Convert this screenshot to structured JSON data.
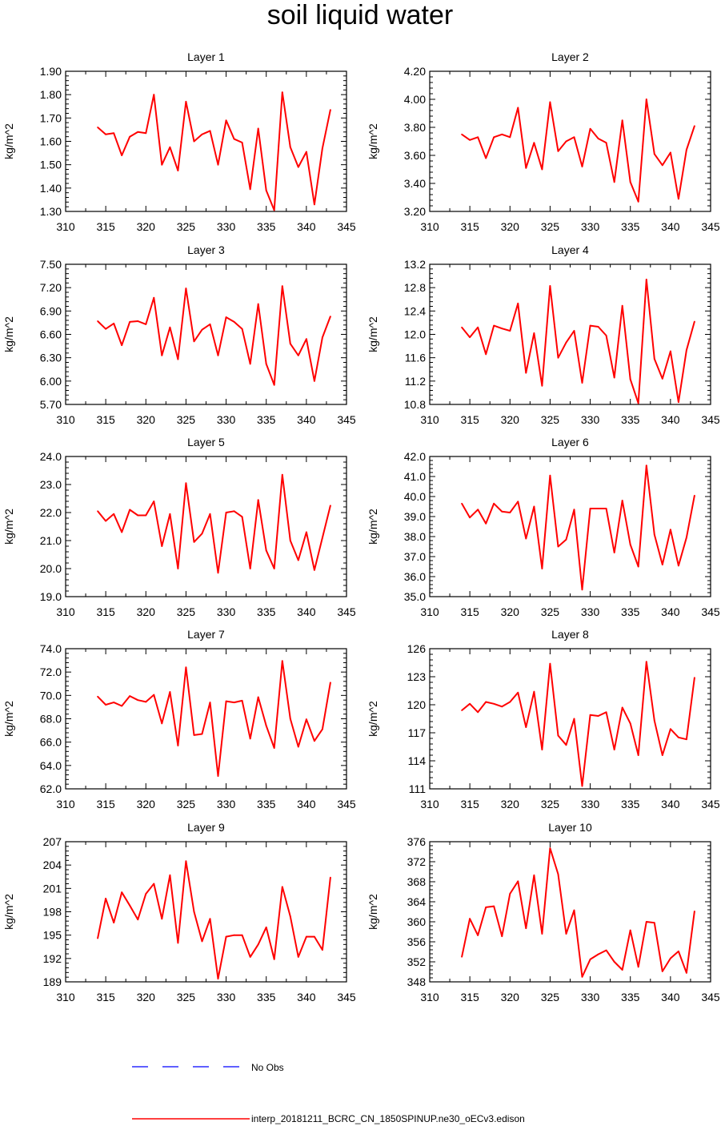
{
  "title": "soil liquid water",
  "ylabel": "kg/m^2",
  "x_ticks": [
    310,
    315,
    320,
    325,
    330,
    335,
    340,
    345
  ],
  "xlim": [
    310,
    345
  ],
  "x": [
    314,
    315,
    316,
    317,
    318,
    319,
    320,
    321,
    322,
    323,
    324,
    325,
    326,
    327,
    328,
    329,
    330,
    331,
    332,
    333,
    334,
    335,
    336,
    337,
    338,
    339,
    340,
    341,
    342,
    343
  ],
  "legend": {
    "obs_label": "No Obs",
    "obs_color": "#0000ff",
    "model_label": "interp_20181211_BCRC_CN_1850SPINUP.ne30_oECv3.edison",
    "model_color": "#ff0000"
  },
  "chart_data": [
    {
      "type": "line",
      "title": "Layer 1",
      "ylim": [
        1.3,
        1.9
      ],
      "yticks": [
        "1.30",
        "1.40",
        "1.50",
        "1.60",
        "1.70",
        "1.80",
        "1.90"
      ],
      "series": [
        {
          "values": [
            1.66,
            1.63,
            1.635,
            1.54,
            1.62,
            1.64,
            1.635,
            1.8,
            1.5,
            1.575,
            1.475,
            1.77,
            1.6,
            1.63,
            1.645,
            1.5,
            1.69,
            1.61,
            1.595,
            1.395,
            1.655,
            1.39,
            1.305,
            1.81,
            1.575,
            1.49,
            1.555,
            1.33,
            1.57,
            1.735
          ]
        }
      ]
    },
    {
      "type": "line",
      "title": "Layer 2",
      "ylim": [
        3.2,
        4.2
      ],
      "yticks": [
        "3.20",
        "3.40",
        "3.60",
        "3.80",
        "4.00",
        "4.20"
      ],
      "series": [
        {
          "values": [
            3.75,
            3.71,
            3.73,
            3.58,
            3.73,
            3.75,
            3.73,
            3.94,
            3.51,
            3.69,
            3.5,
            3.98,
            3.63,
            3.7,
            3.73,
            3.52,
            3.79,
            3.72,
            3.69,
            3.41,
            3.85,
            3.41,
            3.27,
            4.0,
            3.61,
            3.53,
            3.62,
            3.29,
            3.64,
            3.81
          ]
        }
      ]
    },
    {
      "type": "line",
      "title": "Layer 3",
      "ylim": [
        5.7,
        7.5
      ],
      "yticks": [
        "5.70",
        "6.00",
        "6.30",
        "6.60",
        "6.90",
        "7.20",
        "7.50"
      ],
      "series": [
        {
          "values": [
            6.77,
            6.67,
            6.74,
            6.46,
            6.76,
            6.77,
            6.73,
            7.07,
            6.33,
            6.69,
            6.28,
            7.19,
            6.51,
            6.66,
            6.73,
            6.33,
            6.82,
            6.76,
            6.67,
            6.22,
            6.99,
            6.22,
            5.95,
            7.22,
            6.48,
            6.33,
            6.54,
            6.0,
            6.56,
            6.83
          ]
        }
      ]
    },
    {
      "type": "line",
      "title": "Layer 4",
      "ylim": [
        10.8,
        13.2
      ],
      "yticks": [
        "10.8",
        "11.2",
        "11.6",
        "12.0",
        "12.4",
        "12.8",
        "13.2"
      ],
      "series": [
        {
          "values": [
            12.12,
            11.95,
            12.12,
            11.66,
            12.15,
            12.1,
            12.06,
            12.53,
            11.34,
            12.02,
            11.12,
            12.83,
            11.6,
            11.86,
            12.06,
            11.17,
            12.15,
            12.13,
            11.98,
            11.26,
            12.49,
            11.23,
            10.82,
            12.94,
            11.58,
            11.24,
            11.71,
            10.84,
            11.73,
            12.22
          ]
        }
      ]
    },
    {
      "type": "line",
      "title": "Layer 5",
      "ylim": [
        19.0,
        24.0
      ],
      "yticks": [
        "19.0",
        "20.0",
        "21.0",
        "22.0",
        "23.0",
        "24.0"
      ],
      "series": [
        {
          "values": [
            22.05,
            21.7,
            21.95,
            21.3,
            22.1,
            21.9,
            21.9,
            22.4,
            20.8,
            21.95,
            20.0,
            23.05,
            20.95,
            21.25,
            21.95,
            19.85,
            22.0,
            22.05,
            21.85,
            20.0,
            22.45,
            20.65,
            20.0,
            23.35,
            21.0,
            20.3,
            21.3,
            19.95,
            21.1,
            22.25
          ]
        }
      ]
    },
    {
      "type": "line",
      "title": "Layer 6",
      "ylim": [
        35.0,
        42.0
      ],
      "yticks": [
        "35.0",
        "36.0",
        "37.0",
        "38.0",
        "39.0",
        "40.0",
        "41.0",
        "42.0"
      ],
      "series": [
        {
          "values": [
            39.65,
            38.95,
            39.35,
            38.65,
            39.65,
            39.25,
            39.2,
            39.75,
            37.9,
            39.5,
            36.4,
            41.05,
            37.5,
            37.85,
            39.35,
            35.35,
            39.4,
            39.4,
            39.4,
            37.2,
            39.8,
            37.6,
            36.5,
            41.55,
            38.1,
            36.6,
            38.35,
            36.55,
            37.95,
            40.05
          ]
        }
      ]
    },
    {
      "type": "line",
      "title": "Layer 7",
      "ylim": [
        62.0,
        74.0
      ],
      "yticks": [
        "62.0",
        "64.0",
        "66.0",
        "68.0",
        "70.0",
        "72.0",
        "74.0"
      ],
      "series": [
        {
          "values": [
            69.9,
            69.2,
            69.4,
            69.1,
            69.95,
            69.6,
            69.45,
            70.05,
            67.6,
            70.3,
            65.7,
            72.4,
            66.6,
            66.7,
            69.4,
            63.1,
            69.5,
            69.4,
            69.55,
            66.3,
            69.85,
            67.4,
            65.5,
            72.95,
            68.0,
            65.6,
            67.95,
            66.1,
            67.1,
            71.1
          ]
        }
      ]
    },
    {
      "type": "line",
      "title": "Layer 8",
      "ylim": [
        111,
        126
      ],
      "yticks": [
        "111",
        "114",
        "117",
        "120",
        "123",
        "126"
      ],
      "series": [
        {
          "values": [
            119.4,
            120.1,
            119.2,
            120.3,
            120.1,
            119.8,
            120.3,
            121.3,
            117.6,
            121.4,
            115.2,
            124.4,
            116.7,
            115.7,
            118.5,
            111.3,
            118.9,
            118.8,
            119.2,
            115.2,
            119.7,
            118.0,
            114.6,
            124.6,
            118.3,
            114.6,
            117.4,
            116.5,
            116.3,
            122.9
          ]
        }
      ]
    },
    {
      "type": "line",
      "title": "Layer 9",
      "ylim": [
        189,
        207
      ],
      "yticks": [
        "189",
        "192",
        "195",
        "198",
        "201",
        "204",
        "207"
      ],
      "series": [
        {
          "values": [
            194.6,
            199.7,
            196.6,
            200.5,
            198.8,
            197.0,
            200.3,
            201.6,
            197.1,
            202.7,
            194.0,
            204.5,
            198.0,
            194.2,
            197.1,
            189.4,
            194.8,
            195.0,
            195.0,
            192.2,
            193.8,
            196.0,
            191.9,
            201.2,
            197.4,
            192.2,
            194.8,
            194.8,
            193.1,
            202.4
          ]
        }
      ]
    },
    {
      "type": "line",
      "title": "Layer 10",
      "ylim": [
        348,
        376
      ],
      "yticks": [
        "348",
        "352",
        "356",
        "360",
        "364",
        "368",
        "372",
        "376"
      ],
      "series": [
        {
          "values": [
            353.0,
            360.6,
            357.3,
            362.9,
            363.1,
            357.1,
            365.6,
            368.1,
            358.7,
            369.3,
            357.6,
            374.7,
            369.5,
            357.6,
            362.3,
            349.0,
            352.5,
            353.5,
            354.3,
            352.0,
            350.4,
            358.3,
            351.0,
            360.0,
            359.8,
            350.1,
            352.7,
            354.1,
            349.8,
            362.1
          ]
        }
      ]
    }
  ]
}
